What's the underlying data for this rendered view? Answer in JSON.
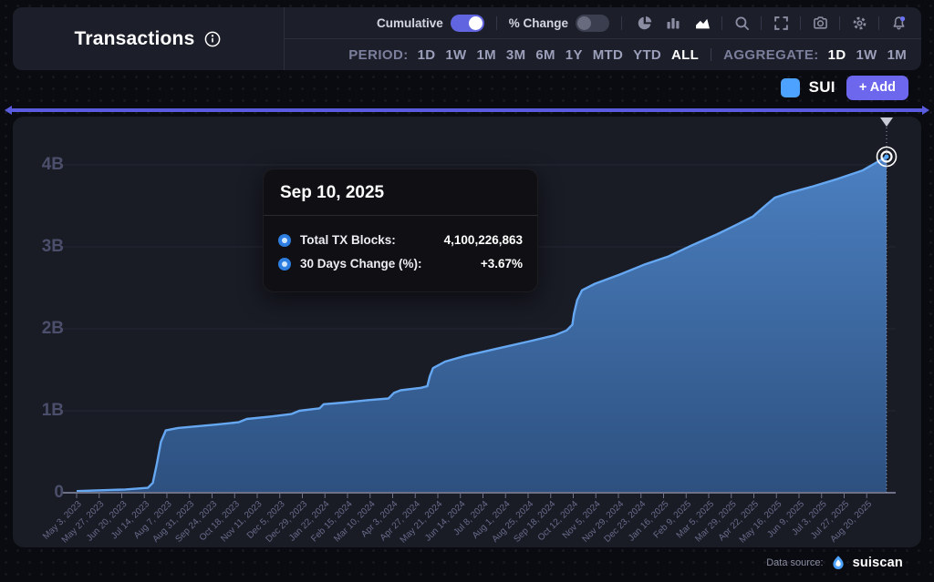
{
  "header": {
    "title": "Transactions",
    "cumulative_label": "Cumulative",
    "cumulative_on": true,
    "percent_change_label": "% Change",
    "percent_change_on": false,
    "toolbar": {
      "groups": [
        [
          "pie-chart",
          "bar-chart",
          "area-chart"
        ],
        [
          "search"
        ],
        [
          "fullscreen"
        ],
        [
          "camera"
        ],
        [
          "settings"
        ],
        [
          "notifications"
        ]
      ],
      "active": "area-chart",
      "notification_badge": true
    },
    "period_label": "PERIOD:",
    "periods": [
      "1D",
      "1W",
      "1M",
      "3M",
      "6M",
      "1Y",
      "MTD",
      "YTD",
      "ALL"
    ],
    "active_period": "ALL",
    "aggregate_label": "AGGREGATE:",
    "aggregates": [
      "1D",
      "1W",
      "1M"
    ],
    "active_aggregate": "1D"
  },
  "legend": {
    "series_label": "SUI",
    "swatch_color": "#4da2ff",
    "add_button": "+ Add"
  },
  "tooltip": {
    "date": "Sep 10, 2025",
    "rows": [
      {
        "label": "Total TX Blocks:",
        "value": "4,100,226,863"
      },
      {
        "label": "30 Days Change (%):",
        "value": "+3.67%"
      }
    ]
  },
  "footer": {
    "data_source_label": "Data source:",
    "brand": "suiscan"
  },
  "colors": {
    "sui_blue": "#4da2ff",
    "accent_purple": "#6d67ee",
    "scrubber_purple": "#5a5ce0",
    "line_blue": "#66a7f2",
    "area_top": "#4d83c6",
    "area_bottom": "#2e5384",
    "toggle_on": "#6165df",
    "notification_badge": "#6b72f0",
    "panel_bg": "#1c1e29",
    "chart_bg": "#191b25"
  },
  "chart_data": {
    "type": "area",
    "title": "Transactions",
    "series_name": "SUI",
    "unit": "total TX blocks (billions)",
    "grid": "horizontal",
    "legend_position": "top-right",
    "ylim": [
      0,
      4.4
    ],
    "yticks": [
      {
        "label": "0",
        "value": 0
      },
      {
        "label": "1B",
        "value": 1
      },
      {
        "label": "2B",
        "value": 2
      },
      {
        "label": "3B",
        "value": 3
      },
      {
        "label": "4B",
        "value": 4
      }
    ],
    "categories": [
      "May 3, 2023",
      "May 27, 2023",
      "Jun 20, 2023",
      "Jul 14, 2023",
      "Aug 7, 2023",
      "Aug 31, 2023",
      "Sep 24, 2023",
      "Oct 18, 2023",
      "Nov 11, 2023",
      "Dec 5, 2023",
      "Dec 29, 2023",
      "Jan 22, 2024",
      "Feb 15, 2024",
      "Mar 10, 2024",
      "Apr 3, 2024",
      "Apr 27, 2024",
      "May 21, 2024",
      "Jun 14, 2024",
      "Jul 8, 2024",
      "Aug 1, 2024",
      "Aug 25, 2024",
      "Sep 18, 2024",
      "Oct 12, 2024",
      "Nov 5, 2024",
      "Nov 29, 2024",
      "Dec 23, 2024",
      "Jan 16, 2025",
      "Feb 9, 2025",
      "Mar 5, 2025",
      "Mar 29, 2025",
      "Apr 22, 2025",
      "May 16, 2025",
      "Jun 9, 2025",
      "Jul 3, 2025",
      "Jul 27, 2025",
      "Aug 20, 2025"
    ],
    "values": [
      0.02,
      0.03,
      0.05,
      0.08,
      0.79,
      0.83,
      0.87,
      0.91,
      0.95,
      0.99,
      1.03,
      1.08,
      1.12,
      1.15,
      1.24,
      1.29,
      1.62,
      1.71,
      1.78,
      1.85,
      1.91,
      1.99,
      2.08,
      2.53,
      2.63,
      2.74,
      2.85,
      2.98,
      3.12,
      3.26,
      3.38,
      3.54,
      3.67,
      3.77,
      3.86,
      3.95
    ],
    "endpoint": {
      "date": "Sep 10, 2025",
      "total_tx_blocks": "4,100,226,863",
      "value_billions": 4.1,
      "change_30d_pct": "+3.67%"
    },
    "draw_points": [
      [
        0.0,
        0.02
      ],
      [
        0.06,
        0.04
      ],
      [
        0.088,
        0.06
      ],
      [
        0.094,
        0.12
      ],
      [
        0.099,
        0.35
      ],
      [
        0.104,
        0.62
      ],
      [
        0.11,
        0.76
      ],
      [
        0.125,
        0.79
      ],
      [
        0.17,
        0.83
      ],
      [
        0.2,
        0.86
      ],
      [
        0.21,
        0.9
      ],
      [
        0.24,
        0.93
      ],
      [
        0.265,
        0.96
      ],
      [
        0.275,
        1.0
      ],
      [
        0.3,
        1.03
      ],
      [
        0.305,
        1.08
      ],
      [
        0.33,
        1.1
      ],
      [
        0.36,
        1.13
      ],
      [
        0.385,
        1.15
      ],
      [
        0.392,
        1.22
      ],
      [
        0.4,
        1.25
      ],
      [
        0.425,
        1.28
      ],
      [
        0.433,
        1.3
      ],
      [
        0.436,
        1.42
      ],
      [
        0.44,
        1.52
      ],
      [
        0.455,
        1.6
      ],
      [
        0.48,
        1.67
      ],
      [
        0.52,
        1.76
      ],
      [
        0.56,
        1.85
      ],
      [
        0.59,
        1.92
      ],
      [
        0.605,
        1.98
      ],
      [
        0.612,
        2.05
      ],
      [
        0.614,
        2.18
      ],
      [
        0.618,
        2.35
      ],
      [
        0.624,
        2.47
      ],
      [
        0.64,
        2.55
      ],
      [
        0.67,
        2.66
      ],
      [
        0.7,
        2.78
      ],
      [
        0.73,
        2.88
      ],
      [
        0.76,
        3.02
      ],
      [
        0.79,
        3.15
      ],
      [
        0.815,
        3.27
      ],
      [
        0.835,
        3.37
      ],
      [
        0.85,
        3.5
      ],
      [
        0.862,
        3.6
      ],
      [
        0.88,
        3.66
      ],
      [
        0.91,
        3.74
      ],
      [
        0.94,
        3.83
      ],
      [
        0.97,
        3.93
      ],
      [
        1.0,
        4.1
      ]
    ]
  }
}
